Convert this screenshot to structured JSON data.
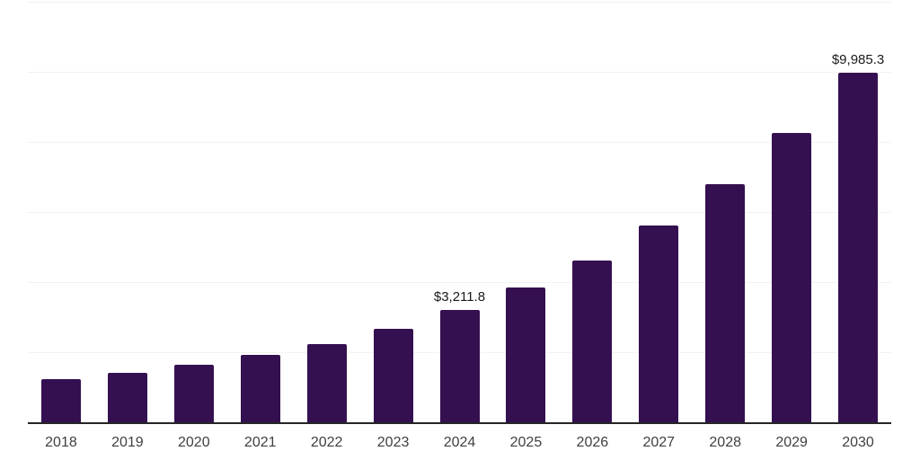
{
  "chart_data": {
    "type": "bar",
    "title": "",
    "xlabel": "",
    "ylabel": "",
    "categories": [
      "2018",
      "2019",
      "2020",
      "2021",
      "2022",
      "2023",
      "2024",
      "2025",
      "2026",
      "2027",
      "2028",
      "2029",
      "2030"
    ],
    "values": [
      1230,
      1420,
      1640,
      1930,
      2240,
      2665,
      3211.8,
      3845,
      4615,
      5610,
      6790,
      8250,
      9985.3
    ],
    "data_labels": [
      "",
      "",
      "",
      "",
      "",
      "",
      "$3,211.8",
      "",
      "",
      "",
      "",
      "",
      "$9,985.3"
    ],
    "ylim": [
      0,
      12000
    ],
    "gridline_interval": 2000,
    "grid": true,
    "legend": false,
    "colors": {
      "bar": "#341050",
      "gridline": "#f2f2f2",
      "axis_line": "#262626",
      "tick_label": "#404040",
      "data_label": "#1a1a1a",
      "background": "#ffffff"
    }
  }
}
